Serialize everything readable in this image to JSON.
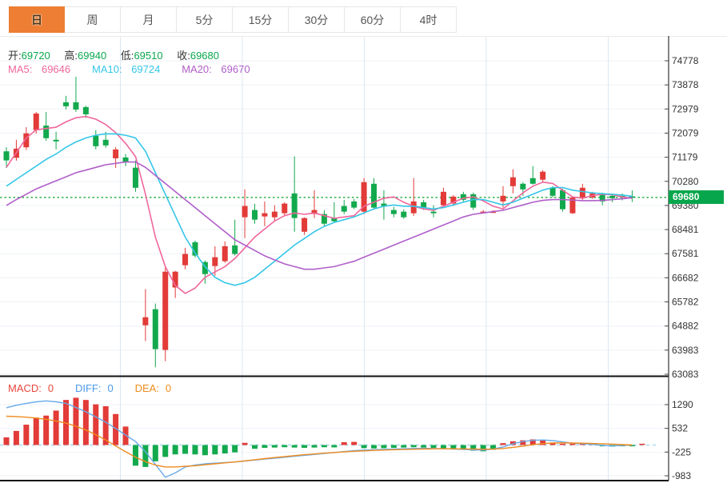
{
  "tabs": {
    "items": [
      {
        "label": "日",
        "active": true
      },
      {
        "label": "周",
        "active": false
      },
      {
        "label": "月",
        "active": false
      },
      {
        "label": "5分",
        "active": false
      },
      {
        "label": "15分",
        "active": false
      },
      {
        "label": "30分",
        "active": false
      },
      {
        "label": "60分",
        "active": false
      },
      {
        "label": "4时",
        "active": false
      }
    ]
  },
  "main_header": {
    "ohlc": [
      {
        "label": "开:",
        "value": "69720"
      },
      {
        "label": "高:",
        "value": "69940"
      },
      {
        "label": "低:",
        "value": "69510"
      },
      {
        "label": "收:",
        "value": "69680"
      }
    ],
    "ma": [
      {
        "label": "MA5:",
        "value": "69646",
        "color": "#f0679c"
      },
      {
        "label": "MA10:",
        "value": "69724",
        "color": "#35c6e7"
      },
      {
        "label": "MA20:",
        "value": "69670",
        "color": "#b05fc9"
      }
    ]
  },
  "macd_header": [
    {
      "label": "MACD:",
      "value": "0",
      "color": "#e8463c"
    },
    {
      "label": "DIFF:",
      "value": "0",
      "color": "#4a9ce8"
    },
    {
      "label": "DEA:",
      "value": "0",
      "color": "#ef8b1f"
    }
  ],
  "price_axis": {
    "ticks": [
      "74778",
      "73878",
      "72979",
      "72079",
      "71179",
      "70280",
      "69380",
      "68481",
      "67581",
      "66682",
      "65782",
      "64882",
      "63983",
      "63083"
    ],
    "current_price": "69680"
  },
  "macd_axis": {
    "ticks": [
      "1290",
      "532",
      "-225",
      "-983"
    ]
  },
  "colors": {
    "up": "#e23b38",
    "down": "#12a94d",
    "ma5": "#f0679c",
    "ma10": "#35c6e7",
    "ma20": "#b05fc9",
    "diff_line": "#6aaae8",
    "dea_line": "#ef8b1f",
    "dotted_price_line": "#2bb04a",
    "tag_bg": "#07a64c",
    "grid_h": "#edf2f8",
    "grid_v": "#dde7f1",
    "axis_line": "#333333",
    "panel_divider": "#111111",
    "zero_dash": "#bfe0f2",
    "active_tab": "#ee7e33"
  },
  "chart_data": [
    {
      "type": "candlestick",
      "title": "",
      "ylabel": "price",
      "ylim": [
        63083,
        74778
      ],
      "y_ticks": [
        74778,
        73878,
        72979,
        72079,
        71179,
        70280,
        69380,
        68481,
        67581,
        66682,
        65782,
        64882,
        63983,
        63083
      ],
      "current_price": 69680,
      "legend": [
        "MA5",
        "MA10",
        "MA20"
      ],
      "candles_ohlc": [
        [
          71400,
          71550,
          70780,
          71060
        ],
        [
          71160,
          71830,
          71050,
          71500
        ],
        [
          71550,
          72300,
          71450,
          72070
        ],
        [
          72190,
          72870,
          72060,
          72810
        ],
        [
          72360,
          72870,
          71790,
          71890
        ],
        [
          71830,
          72130,
          71470,
          71770
        ],
        [
          73230,
          73470,
          72960,
          73080
        ],
        [
          73230,
          74180,
          72870,
          72960
        ],
        [
          73050,
          73100,
          72650,
          72780
        ],
        [
          71980,
          72190,
          71470,
          71590
        ],
        [
          71830,
          72130,
          71530,
          71620
        ],
        [
          71140,
          71560,
          70780,
          71470
        ],
        [
          71170,
          71300,
          70840,
          70990
        ],
        [
          70790,
          71060,
          69890,
          70040
        ],
        [
          64910,
          66260,
          64320,
          65210
        ],
        [
          65510,
          65720,
          63340,
          64020
        ],
        [
          63990,
          67060,
          63570,
          66910
        ],
        [
          66320,
          66940,
          65930,
          66910
        ],
        [
          67150,
          67800,
          67000,
          67570
        ],
        [
          68010,
          68070,
          67440,
          67510
        ],
        [
          67270,
          67330,
          66460,
          66820
        ],
        [
          67120,
          67860,
          66760,
          67450
        ],
        [
          67300,
          68040,
          67240,
          67860
        ],
        [
          67890,
          68850,
          67510,
          67570
        ],
        [
          68940,
          69980,
          68160,
          69360
        ],
        [
          69210,
          69440,
          68700,
          68850
        ],
        [
          68970,
          69530,
          68610,
          69090
        ],
        [
          68940,
          69390,
          68790,
          69150
        ],
        [
          69090,
          69500,
          68990,
          69450
        ],
        [
          69830,
          71210,
          68400,
          68910
        ],
        [
          68400,
          68940,
          68280,
          68910
        ],
        [
          69060,
          69950,
          68910,
          69210
        ],
        [
          69060,
          69210,
          68610,
          68700
        ],
        [
          68910,
          69500,
          68760,
          68790
        ],
        [
          69360,
          69590,
          69060,
          69150
        ],
        [
          69530,
          69620,
          69240,
          69300
        ],
        [
          69150,
          70400,
          69060,
          70250
        ],
        [
          70190,
          70400,
          69240,
          69300
        ],
        [
          69450,
          69950,
          68850,
          69360
        ],
        [
          69210,
          69330,
          68940,
          69060
        ],
        [
          69150,
          69240,
          68880,
          68940
        ],
        [
          69090,
          70400,
          68990,
          69530
        ],
        [
          69500,
          69590,
          69210,
          69300
        ],
        [
          69150,
          69390,
          68940,
          69090
        ],
        [
          69390,
          70040,
          69330,
          69890
        ],
        [
          69450,
          69770,
          69360,
          69710
        ],
        [
          69800,
          69890,
          69530,
          69590
        ],
        [
          69800,
          69860,
          69210,
          69300
        ],
        [
          69150,
          69210,
          69090,
          69150
        ],
        [
          69150,
          69200,
          69100,
          69150
        ],
        [
          69530,
          70100,
          69300,
          69740
        ],
        [
          70100,
          70730,
          69830,
          70430
        ],
        [
          70190,
          70250,
          69740,
          69980
        ],
        [
          70400,
          70850,
          70160,
          70190
        ],
        [
          70340,
          70700,
          70250,
          70640
        ],
        [
          70040,
          70100,
          69680,
          69740
        ],
        [
          69950,
          70010,
          69150,
          69240
        ],
        [
          69090,
          69710,
          69060,
          69680
        ],
        [
          69680,
          70190,
          69590,
          70040
        ],
        [
          69680,
          69890,
          69620,
          69830
        ],
        [
          69830,
          69860,
          69390,
          69530
        ],
        [
          69740,
          69800,
          69500,
          69650
        ],
        [
          69740,
          69830,
          69570,
          69680
        ],
        [
          69720,
          69940,
          69510,
          69680
        ]
      ],
      "series": [
        {
          "name": "MA5",
          "values": [
            70800,
            71350,
            71900,
            72200,
            72250,
            72300,
            72500,
            72650,
            72700,
            72600,
            72400,
            72100,
            71700,
            71200,
            69800,
            68200,
            67100,
            66400,
            66100,
            66300,
            66700,
            66900,
            67100,
            67400,
            67800,
            68200,
            68500,
            68800,
            69000,
            69100,
            69050,
            69100,
            69000,
            68900,
            68950,
            69000,
            69350,
            69500,
            69650,
            69700,
            69500,
            69350,
            69250,
            69200,
            69350,
            69500,
            69650,
            69700,
            69550,
            69350,
            69250,
            69550,
            69850,
            70100,
            70250,
            70200,
            69950,
            69700,
            69650,
            69750,
            69800,
            69780,
            69700,
            69646
          ]
        },
        {
          "name": "MA10",
          "values": [
            70100,
            70350,
            70600,
            70850,
            71100,
            71300,
            71550,
            71750,
            71900,
            72000,
            72050,
            72050,
            72000,
            71900,
            71400,
            70600,
            69800,
            69000,
            68200,
            67600,
            67100,
            66700,
            66500,
            66400,
            66500,
            66700,
            67000,
            67300,
            67600,
            67900,
            68150,
            68400,
            68600,
            68750,
            68850,
            68950,
            69100,
            69250,
            69350,
            69400,
            69350,
            69350,
            69300,
            69250,
            69300,
            69400,
            69500,
            69600,
            69600,
            69500,
            69400,
            69500,
            69650,
            69800,
            69950,
            70050,
            70050,
            69950,
            69900,
            69850,
            69820,
            69800,
            69770,
            69724
          ]
        },
        {
          "name": "MA20",
          "values": [
            69380,
            69600,
            69800,
            70000,
            70150,
            70300,
            70450,
            70600,
            70700,
            70800,
            70900,
            70950,
            71000,
            71000,
            70800,
            70500,
            70200,
            69900,
            69600,
            69300,
            69000,
            68700,
            68400,
            68100,
            67900,
            67700,
            67500,
            67350,
            67200,
            67100,
            67000,
            67000,
            67050,
            67100,
            67200,
            67300,
            67450,
            67600,
            67750,
            67900,
            68050,
            68200,
            68350,
            68500,
            68650,
            68800,
            68950,
            69050,
            69100,
            69150,
            69200,
            69300,
            69400,
            69500,
            69570,
            69600,
            69600,
            69580,
            69560,
            69560,
            69570,
            69600,
            69630,
            69670
          ]
        }
      ]
    },
    {
      "type": "macd",
      "y_ticks": [
        1290,
        532,
        -225,
        -983
      ],
      "bars": [
        245,
        450,
        650,
        875,
        940,
        1100,
        1440,
        1510,
        1440,
        1300,
        1240,
        990,
        590,
        -660,
        -700,
        -520,
        -380,
        -300,
        -280,
        -300,
        -325,
        -300,
        -270,
        -235,
        70,
        -120,
        -90,
        -80,
        -70,
        -80,
        -90,
        -80,
        -70,
        -75,
        90,
        100,
        -100,
        -110,
        -100,
        -90,
        -80,
        -70,
        -80,
        -90,
        -100,
        -110,
        -130,
        -180,
        -200,
        -150,
        60,
        120,
        150,
        180,
        160,
        80,
        30,
        45,
        45,
        30,
        -30,
        -50,
        -30,
        -20,
        0
      ],
      "series": [
        {
          "name": "DIFF",
          "values": [
            1190,
            1270,
            1330,
            1380,
            1410,
            1380,
            1330,
            1200,
            1060,
            900,
            730,
            530,
            320,
            110,
            -215,
            -620,
            -1030,
            -890,
            -700,
            -640,
            -600,
            -580,
            -560,
            -540,
            -510,
            -480,
            -450,
            -420,
            -390,
            -360,
            -330,
            -300,
            -270,
            -240,
            -210,
            -180,
            -160,
            -150,
            -140,
            -130,
            -120,
            -110,
            -105,
            -110,
            -120,
            -130,
            -140,
            -155,
            -160,
            -130,
            -60,
            40,
            110,
            150,
            160,
            140,
            100,
            60,
            40,
            20,
            -10,
            -30,
            -15,
            0
          ]
        },
        {
          "name": "DEA",
          "values": [
            920,
            910,
            890,
            860,
            820,
            770,
            700,
            600,
            480,
            330,
            160,
            -30,
            -215,
            -390,
            -530,
            -640,
            -700,
            -700,
            -680,
            -660,
            -630,
            -600,
            -570,
            -540,
            -505,
            -470,
            -435,
            -400,
            -370,
            -340,
            -310,
            -285,
            -260,
            -240,
            -220,
            -200,
            -185,
            -172,
            -160,
            -150,
            -142,
            -135,
            -128,
            -122,
            -120,
            -122,
            -125,
            -130,
            -135,
            -130,
            -110,
            -75,
            -35,
            10,
            45,
            65,
            70,
            65,
            58,
            50,
            40,
            28,
            12,
            0
          ]
        }
      ]
    }
  ]
}
